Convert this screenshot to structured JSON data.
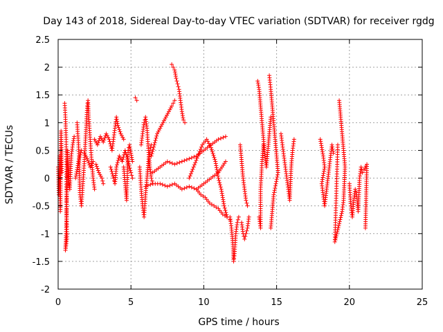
{
  "chart_data": {
    "type": "scatter",
    "title": "Day 143 of 2018, Sidereal Day-to-day VTEC variation (SDTVAR) for receiver rgdg",
    "xlabel": "GPS time / hours",
    "ylabel": "SDTVAR / TECUs",
    "xlim": [
      0,
      25
    ],
    "ylim": [
      -2,
      2.5
    ],
    "xticks": [
      0,
      5,
      10,
      15,
      20,
      25
    ],
    "yticks": [
      -2,
      -1.5,
      -1,
      -0.5,
      0,
      0.5,
      1,
      1.5,
      2,
      2.5
    ],
    "grid": true,
    "marker": "+",
    "color": "#ff0000",
    "tracks": [
      {
        "name": "arc-01",
        "points": [
          [
            0.0,
            0.2
          ],
          [
            0.05,
            -0.3
          ],
          [
            0.1,
            0.4
          ],
          [
            0.15,
            -0.6
          ],
          [
            0.2,
            0.85
          ],
          [
            0.25,
            0.1
          ]
        ]
      },
      {
        "name": "arc-02",
        "points": [
          [
            0.45,
            1.35
          ],
          [
            0.5,
            1.1
          ],
          [
            0.55,
            0.7
          ],
          [
            0.6,
            -1.1
          ],
          [
            0.5,
            -1.3
          ],
          [
            0.55,
            -1.0
          ],
          [
            0.65,
            0.5
          ],
          [
            0.7,
            0.0
          ],
          [
            0.8,
            -0.2
          ],
          [
            0.9,
            0.4
          ],
          [
            1.0,
            0.6
          ],
          [
            1.1,
            0.75
          ]
        ]
      },
      {
        "name": "arc-03",
        "points": [
          [
            1.3,
            1.0
          ],
          [
            1.4,
            0.6
          ],
          [
            1.45,
            0.2
          ],
          [
            1.5,
            -0.3
          ],
          [
            1.6,
            -0.5
          ],
          [
            1.7,
            -0.1
          ],
          [
            1.8,
            0.3
          ],
          [
            1.9,
            0.8
          ],
          [
            2.0,
            1.3
          ],
          [
            2.05,
            1.4
          ],
          [
            2.1,
            1.1
          ],
          [
            2.2,
            0.7
          ],
          [
            2.3,
            0.3
          ],
          [
            2.4,
            0.0
          ],
          [
            2.5,
            -0.2
          ]
        ]
      },
      {
        "name": "arc-04",
        "points": [
          [
            1.2,
            0.0
          ],
          [
            1.4,
            0.3
          ],
          [
            1.6,
            0.5
          ],
          [
            1.8,
            0.45
          ],
          [
            2.0,
            0.35
          ],
          [
            2.2,
            0.2
          ],
          [
            2.4,
            0.3
          ],
          [
            2.6,
            0.25
          ],
          [
            2.8,
            0.1
          ],
          [
            3.0,
            0.0
          ],
          [
            3.1,
            -0.1
          ]
        ]
      },
      {
        "name": "arc-05",
        "points": [
          [
            2.5,
            0.7
          ],
          [
            2.7,
            0.6
          ],
          [
            2.9,
            0.75
          ],
          [
            3.1,
            0.65
          ],
          [
            3.3,
            0.8
          ],
          [
            3.5,
            0.7
          ],
          [
            3.7,
            0.5
          ],
          [
            3.9,
            0.9
          ],
          [
            4.0,
            1.1
          ],
          [
            4.1,
            0.95
          ],
          [
            4.3,
            0.8
          ],
          [
            4.5,
            0.7
          ]
        ]
      },
      {
        "name": "arc-06",
        "points": [
          [
            3.6,
            0.2
          ],
          [
            3.8,
            0.0
          ],
          [
            3.9,
            -0.1
          ],
          [
            4.0,
            0.2
          ],
          [
            4.2,
            0.4
          ],
          [
            4.4,
            0.3
          ],
          [
            4.6,
            0.5
          ],
          [
            4.8,
            0.3
          ],
          [
            5.0,
            0.1
          ],
          [
            5.1,
            0.0
          ]
        ]
      },
      {
        "name": "arc-07",
        "points": [
          [
            4.5,
            0.2
          ],
          [
            4.6,
            -0.1
          ],
          [
            4.7,
            -0.4
          ],
          [
            4.8,
            0.5
          ],
          [
            4.9,
            0.6
          ],
          [
            5.0,
            0.45
          ],
          [
            5.1,
            0.3
          ]
        ]
      },
      {
        "name": "arc-08",
        "points": [
          [
            5.3,
            1.45
          ],
          [
            5.4,
            1.4
          ]
        ]
      },
      {
        "name": "arc-09",
        "points": [
          [
            5.6,
            0.2
          ],
          [
            5.7,
            -0.2
          ],
          [
            5.8,
            -0.5
          ],
          [
            5.9,
            -0.7
          ],
          [
            6.0,
            -0.3
          ],
          [
            6.1,
            0.0
          ],
          [
            6.2,
            0.3
          ],
          [
            6.3,
            0.5
          ],
          [
            6.4,
            0.6
          ]
        ]
      },
      {
        "name": "arc-10",
        "points": [
          [
            5.7,
            0.6
          ],
          [
            5.8,
            0.8
          ],
          [
            5.9,
            1.0
          ],
          [
            6.0,
            1.1
          ],
          [
            6.1,
            0.9
          ],
          [
            6.2,
            0.5
          ],
          [
            6.3,
            0.2
          ],
          [
            6.4,
            0.0
          ],
          [
            6.5,
            -0.1
          ]
        ]
      },
      {
        "name": "arc-11",
        "points": [
          [
            6.4,
            0.4
          ],
          [
            6.6,
            0.6
          ],
          [
            6.8,
            0.8
          ],
          [
            7.0,
            0.9
          ],
          [
            7.2,
            1.0
          ],
          [
            7.4,
            1.1
          ],
          [
            7.6,
            1.2
          ],
          [
            7.8,
            1.3
          ],
          [
            7.9,
            1.35
          ],
          [
            8.0,
            1.4
          ]
        ]
      },
      {
        "name": "arc-12",
        "points": [
          [
            7.8,
            2.05
          ],
          [
            7.9,
            2.0
          ],
          [
            8.0,
            1.95
          ],
          [
            8.1,
            1.8
          ],
          [
            8.2,
            1.7
          ],
          [
            8.3,
            1.6
          ],
          [
            8.4,
            1.4
          ],
          [
            8.5,
            1.2
          ],
          [
            8.6,
            1.05
          ],
          [
            8.7,
            1.0
          ]
        ]
      },
      {
        "name": "arc-13",
        "points": [
          [
            6.0,
            -0.15
          ],
          [
            6.5,
            -0.1
          ],
          [
            7.0,
            -0.1
          ],
          [
            7.5,
            -0.15
          ],
          [
            8.0,
            -0.1
          ],
          [
            8.5,
            -0.2
          ],
          [
            9.0,
            -0.15
          ],
          [
            9.5,
            -0.2
          ],
          [
            10.0,
            -0.1
          ],
          [
            10.5,
            0.0
          ],
          [
            11.0,
            0.1
          ],
          [
            11.5,
            0.3
          ]
        ]
      },
      {
        "name": "arc-14",
        "points": [
          [
            6.5,
            0.1
          ],
          [
            7.0,
            0.2
          ],
          [
            7.5,
            0.3
          ],
          [
            8.0,
            0.25
          ],
          [
            8.5,
            0.3
          ],
          [
            9.0,
            0.35
          ],
          [
            9.5,
            0.4
          ],
          [
            10.0,
            0.5
          ],
          [
            10.5,
            0.6
          ],
          [
            11.0,
            0.7
          ],
          [
            11.5,
            0.75
          ]
        ]
      },
      {
        "name": "arc-15",
        "points": [
          [
            9.0,
            0.0
          ],
          [
            9.3,
            0.2
          ],
          [
            9.6,
            0.4
          ],
          [
            9.9,
            0.6
          ],
          [
            10.2,
            0.7
          ],
          [
            10.5,
            0.55
          ],
          [
            10.8,
            0.3
          ],
          [
            11.0,
            0.0
          ],
          [
            11.2,
            -0.2
          ],
          [
            11.4,
            -0.5
          ],
          [
            11.6,
            -0.7
          ]
        ]
      },
      {
        "name": "arc-16",
        "points": [
          [
            9.5,
            -0.2
          ],
          [
            9.8,
            -0.3
          ],
          [
            10.1,
            -0.35
          ],
          [
            10.4,
            -0.45
          ],
          [
            10.7,
            -0.5
          ],
          [
            11.0,
            -0.55
          ],
          [
            11.3,
            -0.65
          ],
          [
            11.6,
            -0.7
          ],
          [
            11.8,
            -0.75
          ]
        ]
      },
      {
        "name": "arc-17",
        "points": [
          [
            11.8,
            -0.7
          ],
          [
            11.9,
            -0.9
          ],
          [
            12.0,
            -1.2
          ],
          [
            12.05,
            -1.5
          ],
          [
            12.1,
            -1.4
          ],
          [
            12.2,
            -1.0
          ],
          [
            12.3,
            -0.8
          ],
          [
            12.4,
            -0.7
          ]
        ]
      },
      {
        "name": "arc-18",
        "points": [
          [
            12.5,
            0.6
          ],
          [
            12.6,
            0.3
          ],
          [
            12.7,
            0.0
          ],
          [
            12.8,
            -0.2
          ],
          [
            12.9,
            -0.4
          ],
          [
            13.0,
            -0.5
          ]
        ]
      },
      {
        "name": "arc-19",
        "points": [
          [
            12.6,
            -0.8
          ],
          [
            12.7,
            -1.0
          ],
          [
            12.8,
            -1.1
          ],
          [
            12.9,
            -1.0
          ],
          [
            13.0,
            -0.9
          ],
          [
            13.1,
            -0.7
          ]
        ]
      },
      {
        "name": "arc-20",
        "points": [
          [
            13.7,
            1.75
          ],
          [
            13.8,
            1.6
          ],
          [
            13.9,
            1.3
          ],
          [
            14.0,
            1.0
          ],
          [
            14.1,
            0.7
          ],
          [
            14.2,
            0.4
          ],
          [
            14.3,
            0.2
          ],
          [
            14.4,
            0.5
          ],
          [
            14.5,
            0.8
          ],
          [
            14.6,
            1.1
          ]
        ]
      },
      {
        "name": "arc-21",
        "points": [
          [
            13.8,
            -0.7
          ],
          [
            13.9,
            -0.9
          ],
          [
            13.9,
            -0.2
          ],
          [
            14.0,
            0.3
          ],
          [
            14.1,
            0.6
          ]
        ]
      },
      {
        "name": "arc-22",
        "points": [
          [
            14.5,
            1.85
          ],
          [
            14.6,
            1.6
          ],
          [
            14.7,
            1.3
          ],
          [
            14.8,
            1.0
          ],
          [
            14.9,
            0.7
          ],
          [
            15.0,
            0.4
          ],
          [
            15.1,
            0.1
          ],
          [
            14.8,
            -0.3
          ],
          [
            14.7,
            -0.6
          ],
          [
            14.6,
            -0.9
          ]
        ]
      },
      {
        "name": "arc-23",
        "points": [
          [
            15.3,
            0.8
          ],
          [
            15.4,
            0.6
          ],
          [
            15.5,
            0.4
          ],
          [
            15.6,
            0.2
          ],
          [
            15.7,
            0.0
          ],
          [
            15.8,
            -0.2
          ],
          [
            15.9,
            -0.4
          ],
          [
            16.0,
            0.2
          ],
          [
            16.1,
            0.5
          ],
          [
            16.2,
            0.7
          ]
        ]
      },
      {
        "name": "arc-24",
        "points": [
          [
            18.0,
            0.7
          ],
          [
            18.1,
            0.55
          ],
          [
            18.2,
            0.4
          ],
          [
            18.3,
            0.2
          ],
          [
            18.1,
            -0.1
          ],
          [
            18.2,
            -0.3
          ],
          [
            18.3,
            -0.5
          ],
          [
            18.8,
            0.6
          ],
          [
            18.9,
            0.45
          ]
        ]
      },
      {
        "name": "arc-25",
        "points": [
          [
            19.3,
            1.4
          ],
          [
            19.4,
            1.1
          ],
          [
            19.5,
            0.8
          ],
          [
            19.6,
            0.5
          ],
          [
            19.7,
            0.2
          ],
          [
            19.6,
            -0.4
          ],
          [
            19.5,
            -0.6
          ],
          [
            19.0,
            -1.15
          ],
          [
            19.2,
            0.6
          ]
        ]
      },
      {
        "name": "arc-26",
        "points": [
          [
            20.0,
            -0.1
          ],
          [
            20.1,
            -0.5
          ],
          [
            20.2,
            -0.7
          ],
          [
            20.3,
            -0.4
          ],
          [
            20.4,
            -0.2
          ],
          [
            20.5,
            -0.3
          ],
          [
            20.6,
            -0.6
          ],
          [
            20.7,
            0.0
          ],
          [
            20.8,
            0.2
          ],
          [
            20.9,
            0.1
          ],
          [
            21.0,
            0.15
          ],
          [
            21.2,
            0.25
          ],
          [
            21.1,
            -0.9
          ]
        ]
      }
    ]
  }
}
